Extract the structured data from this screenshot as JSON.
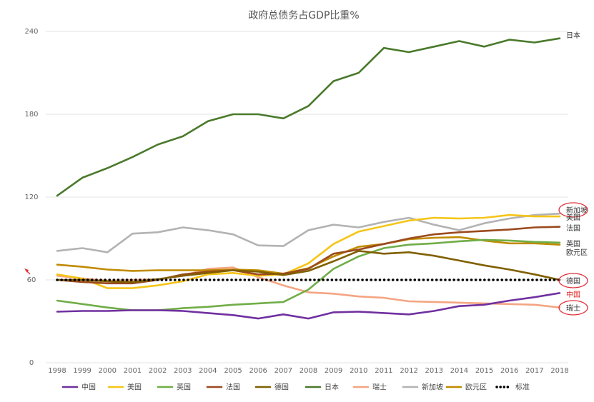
{
  "chart_data": {
    "type": "line",
    "title": "政府总债务占GDP比重%",
    "xlabel": "",
    "ylabel": "",
    "x": [
      "1998",
      "1999",
      "2000",
      "2001",
      "2002",
      "2003",
      "2004",
      "2005",
      "2006",
      "2007",
      "2008",
      "2009",
      "2010",
      "2011",
      "2012",
      "2013",
      "2014",
      "2015",
      "2016",
      "2017",
      "2018"
    ],
    "ylim": [
      0,
      240
    ],
    "yticks": [
      "0",
      "60",
      "120",
      "180",
      "240"
    ],
    "grid": "horizontal",
    "legend_position": "bottom",
    "series": [
      {
        "name": "中国",
        "color": "#7030a0",
        "values": [
          37,
          37.5,
          37.5,
          38,
          38,
          37.5,
          36,
          34.5,
          32,
          35,
          32,
          36.5,
          37,
          36,
          35,
          37.5,
          41,
          42,
          45,
          47.5,
          50.5
        ]
      },
      {
        "name": "美国",
        "color": "#f5c518",
        "values": [
          64,
          61,
          54,
          54,
          56,
          59,
          64,
          65,
          63,
          64,
          72,
          86,
          95,
          99,
          103,
          105,
          104.5,
          105,
          107,
          106,
          106
        ]
      },
      {
        "name": "英国",
        "color": "#70ad47",
        "values": [
          45,
          42.5,
          40,
          38,
          38,
          39.5,
          40.5,
          42,
          43,
          44,
          53,
          68,
          77,
          83,
          85.5,
          86.5,
          88,
          89,
          88.5,
          87.5,
          87
        ]
      },
      {
        "name": "法国",
        "color": "#9b4a1d",
        "values": [
          60,
          58.5,
          57.5,
          57.5,
          60,
          64,
          66,
          67,
          64,
          64.5,
          68,
          79,
          82,
          86,
          90,
          93,
          94.5,
          95.5,
          96.5,
          98,
          98.5
        ]
      },
      {
        "name": "德国",
        "color": "#806000",
        "values": [
          60,
          60,
          59,
          58.5,
          60.5,
          63,
          65,
          67,
          66,
          63.5,
          66.5,
          73.5,
          81,
          79,
          80,
          77.5,
          74,
          70.5,
          67.5,
          64,
          60
        ]
      },
      {
        "name": "日本",
        "color": "#4a7a2c",
        "values": [
          121,
          134,
          141,
          149,
          158,
          164,
          175,
          180,
          180,
          177,
          186,
          204,
          210,
          228,
          225,
          229,
          233,
          229,
          234,
          232,
          235
        ]
      },
      {
        "name": "瑞士",
        "color": "#f4a582",
        "values": [
          63,
          61,
          59.5,
          60,
          60.5,
          63,
          68,
          69,
          62,
          56,
          51,
          50,
          48,
          47,
          44.5,
          44,
          43.5,
          43,
          42.5,
          42,
          40
        ]
      },
      {
        "name": "新加坡",
        "color": "#b3b3b3",
        "values": [
          81,
          83,
          80,
          93.5,
          94.5,
          98,
          96,
          93,
          85,
          84.5,
          96,
          100,
          98,
          102,
          105,
          100,
          96,
          101,
          104.5,
          107,
          108
        ]
      },
      {
        "name": "欧元区",
        "color": "#c08b00",
        "values": [
          71,
          69.5,
          67.5,
          66.5,
          67,
          67,
          67,
          67.5,
          67,
          64.5,
          68.5,
          77,
          84,
          86,
          89.5,
          90.5,
          91,
          88.5,
          86.5,
          86.5,
          85.5
        ]
      },
      {
        "name": "标准",
        "color": "#000000",
        "dotted": true,
        "values": [
          60,
          60,
          60,
          60,
          60,
          60,
          60,
          60,
          60,
          60,
          60,
          60,
          60,
          60,
          60,
          60,
          60,
          60,
          60,
          60,
          60
        ]
      }
    ],
    "end_labels": [
      {
        "text": "日本",
        "series": "日本",
        "color": "#333333",
        "circled": false
      },
      {
        "text": "新加坡",
        "series": "新加坡",
        "color": "#333333",
        "circled": true
      },
      {
        "text": "美国",
        "series": "美国",
        "color": "#333333",
        "circled": false
      },
      {
        "text": "法国",
        "series": "法国",
        "color": "#333333",
        "circled": false
      },
      {
        "text": "英国",
        "series": "英国",
        "color": "#333333",
        "circled": false
      },
      {
        "text": "欧元区",
        "series": "欧元区",
        "color": "#333333",
        "circled": false
      },
      {
        "text": "德国",
        "series": "德国",
        "color": "#333333",
        "circled": true
      },
      {
        "text": "中国",
        "series": "中国",
        "color": "#e02020",
        "circled": false
      },
      {
        "text": "瑞士",
        "series": "瑞士",
        "color": "#333333",
        "circled": true
      }
    ],
    "annotation_color": "#e0303a"
  }
}
